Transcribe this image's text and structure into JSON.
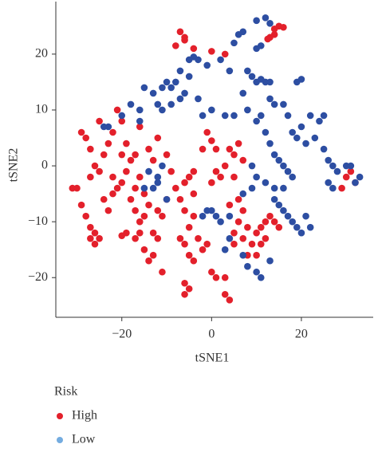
{
  "chart_data": {
    "type": "scatter",
    "x_label": "tSNE1",
    "y_label": "tSNE2",
    "legend_title": "Risk",
    "xlim": [
      -34.7,
      36
    ],
    "ylim": [
      -27.1,
      29.4
    ],
    "xticks": [
      {
        "value": -20,
        "label": "−20"
      },
      0,
      20
    ],
    "yticks": [
      {
        "value": -20,
        "label": "−20"
      },
      {
        "value": -10,
        "label": "−10"
      },
      0,
      10,
      20
    ],
    "series": [
      {
        "name": "High",
        "color": "#e3202b",
        "legend_color": "#e3202b",
        "x": [
          -7,
          -6,
          -6,
          -8,
          -4,
          0,
          3,
          14,
          15,
          16,
          13,
          14,
          12.5,
          -30,
          -31,
          -29,
          -28,
          -27,
          -26,
          -27,
          -26,
          -25,
          -28,
          -29,
          -27,
          -26,
          -27,
          -25,
          -24,
          -23,
          -22,
          -21,
          -24,
          -23,
          -22,
          -20,
          -19,
          -18,
          -20,
          -19,
          -17,
          -21,
          -20,
          -18,
          -17,
          -16,
          -15,
          -17,
          -16,
          -15,
          -14,
          -19,
          -20,
          -17,
          -16,
          -13,
          -12,
          -15,
          -14,
          -13,
          -11,
          -25,
          -22,
          -16,
          -14,
          -13,
          -12,
          -10,
          -9,
          -10,
          -11,
          -12,
          -8,
          -7,
          -6,
          -5,
          -6,
          -4,
          -4,
          -5,
          -6,
          -7,
          -5,
          -4,
          -2,
          -3,
          -6,
          -5,
          -6,
          -1,
          0,
          1,
          3,
          4,
          3,
          -1,
          0,
          1,
          -2,
          -4,
          0,
          1,
          2,
          3,
          5,
          6,
          4,
          7,
          5,
          6,
          4,
          6,
          7,
          8,
          7,
          9,
          10,
          11,
          8,
          10,
          11,
          12,
          12,
          13,
          14,
          15,
          30,
          31,
          32,
          29,
          5,
          5
        ],
        "values": [
          24,
          23,
          22.5,
          21.5,
          21,
          20.5,
          20,
          24.5,
          25,
          24.8,
          23,
          23.5,
          22.7,
          -4,
          -4,
          -7,
          -9,
          -11,
          -12,
          -13,
          -14,
          -13,
          5,
          6,
          3,
          0,
          -2,
          -1,
          2,
          4,
          -2,
          -4,
          -6,
          -8,
          -5,
          -3,
          -1,
          1,
          2,
          4,
          2,
          10,
          8,
          -6,
          -8,
          -10,
          -9,
          -4,
          -2,
          -5,
          -7,
          -12,
          -12.5,
          -13,
          -12,
          -12,
          -13,
          -15,
          -17,
          -16,
          -19,
          8,
          6,
          7,
          3,
          1,
          5,
          2,
          -1,
          -6,
          -9,
          -8,
          -4,
          -6,
          -3,
          -2,
          -8,
          -5,
          -9,
          -11,
          -14,
          -13,
          -16,
          -17,
          -15,
          -13,
          -21,
          -22,
          -23,
          -14,
          -19,
          -20,
          -23,
          -24,
          -20,
          6,
          4.5,
          3,
          3,
          -1,
          -3,
          -1,
          -2,
          0,
          2,
          4,
          3,
          1,
          -2,
          -6,
          -7,
          -10,
          -8,
          -11,
          -13,
          -14,
          -12,
          -11,
          -16,
          -16,
          -14,
          -13,
          -10,
          -9,
          -10,
          -11,
          -2,
          -1,
          -3,
          -4,
          -14,
          -12
        ]
      },
      {
        "name": "Low",
        "color": "#2d4ea2",
        "legend_color": "#74ace0",
        "x": [
          10,
          12,
          13,
          6,
          7,
          5,
          10,
          11,
          -5,
          -4,
          -3,
          2,
          -1,
          -5,
          -7,
          4,
          8,
          9,
          10,
          11,
          12,
          13,
          19,
          20,
          -15,
          -13,
          -11,
          -10,
          -8,
          -9,
          -12,
          -11,
          -9,
          -7,
          -6,
          -16,
          -18,
          -20,
          -16,
          -23,
          -24,
          -3,
          -2,
          0,
          3,
          5,
          7,
          8,
          10,
          11,
          13,
          14,
          16,
          17,
          22,
          24,
          25,
          20,
          18,
          19,
          21,
          23,
          25,
          26,
          27,
          28,
          26,
          30,
          31,
          33,
          32,
          27,
          12,
          13,
          14,
          15,
          16,
          17,
          18,
          16,
          14,
          12,
          10,
          9,
          -1,
          -2,
          0,
          1,
          2,
          4,
          7,
          9,
          14,
          15,
          16,
          17,
          18,
          19,
          20,
          22,
          21,
          13,
          10,
          11,
          8,
          3,
          4,
          7,
          -12,
          -12,
          -11,
          -13,
          -10,
          -14,
          -15
        ],
        "values": [
          26,
          26.5,
          25.5,
          23.5,
          24,
          22,
          21,
          21.5,
          19,
          19.5,
          19,
          19,
          18,
          16,
          17,
          17,
          17,
          16,
          15,
          15.5,
          15,
          15,
          15,
          15.5,
          14,
          13,
          14,
          15,
          15,
          14,
          11,
          10,
          11,
          12,
          13,
          10,
          11,
          9,
          8,
          7,
          7,
          12,
          9,
          10,
          9,
          9,
          13,
          10,
          8,
          9,
          12,
          11,
          11,
          9,
          9,
          8,
          9,
          7,
          6,
          5,
          4,
          5,
          3,
          1,
          0,
          -1,
          -3,
          0,
          0,
          -2,
          -3,
          -4,
          6,
          4,
          2,
          1,
          0,
          -1,
          -2,
          -4,
          -4,
          -3,
          -2,
          0,
          -8,
          -9,
          -8,
          -9,
          -10,
          -9,
          -5,
          -4,
          -6,
          -7,
          -8,
          -9,
          -10,
          -11,
          -12,
          -11,
          -9,
          -17,
          -19,
          -20,
          -18,
          -15,
          -13,
          -16,
          -3,
          -2,
          0,
          -4,
          -6,
          -1,
          -4
        ]
      }
    ]
  }
}
